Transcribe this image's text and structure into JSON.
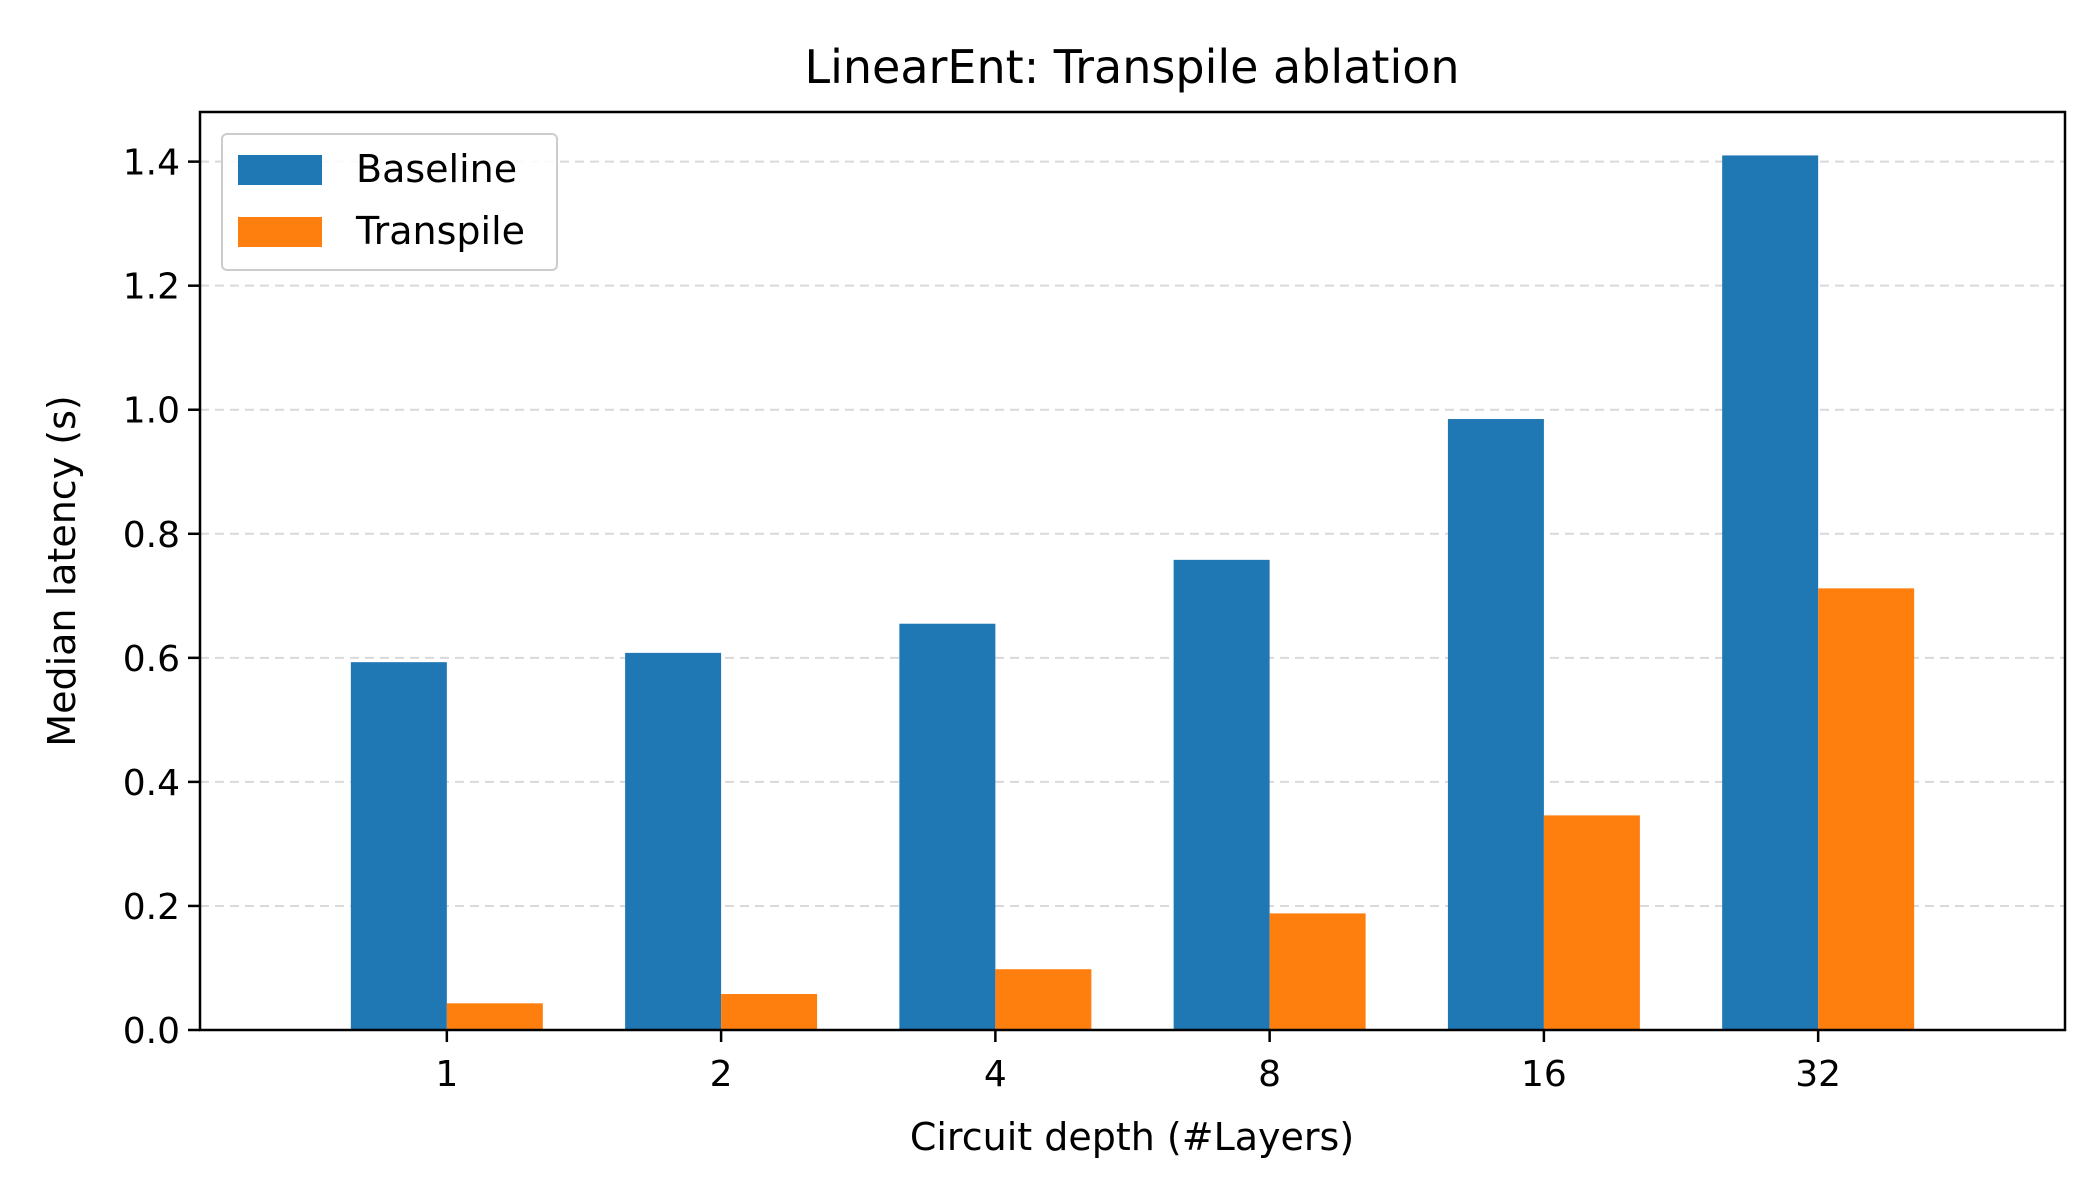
{
  "chart_data": {
    "type": "bar",
    "title": "LinearEnt: Transpile ablation",
    "xlabel": "Circuit depth (#Layers)",
    "ylabel": "Median latency (s)",
    "categories": [
      "1",
      "2",
      "4",
      "8",
      "16",
      "32"
    ],
    "series": [
      {
        "name": "Baseline",
        "color": "#1f77b4",
        "values": [
          0.593,
          0.608,
          0.655,
          0.758,
          0.985,
          1.41
        ]
      },
      {
        "name": "Transpile",
        "color": "#ff7f0e",
        "values": [
          0.043,
          0.058,
          0.098,
          0.188,
          0.346,
          0.712
        ]
      }
    ],
    "ylim": [
      0,
      1.48
    ],
    "yticks": [
      "0.0",
      "0.2",
      "0.4",
      "0.6",
      "0.8",
      "1.0",
      "1.2",
      "1.4"
    ],
    "grid": "y-dashed",
    "legend_position": "top-left"
  }
}
